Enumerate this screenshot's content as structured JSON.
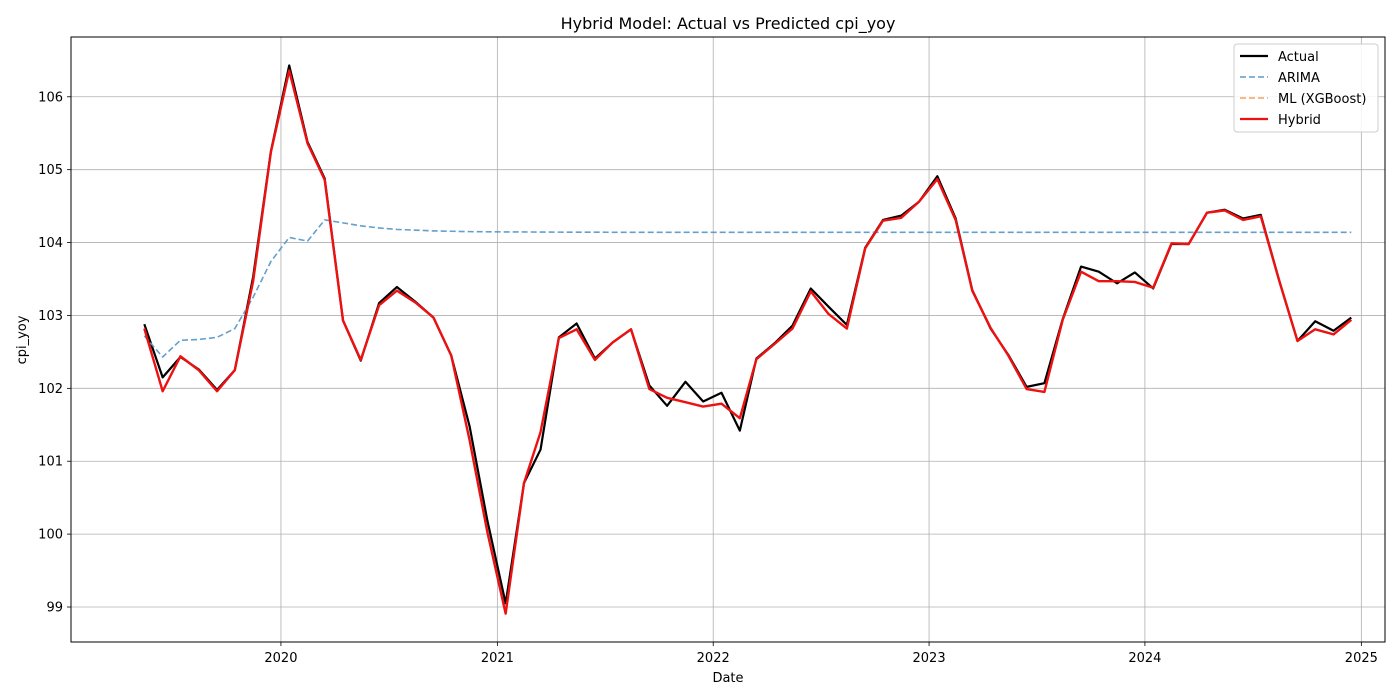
{
  "chart_data": {
    "type": "line",
    "title": "Hybrid Model: Actual vs Predicted cpi_yoy",
    "xlabel": "Date",
    "ylabel": "cpi_yoy",
    "xlim": [
      "2019-01-11",
      "2025-02-10"
    ],
    "ylim": [
      98.52,
      106.82
    ],
    "grid": true,
    "legend_position": "top-right",
    "x_ticks": [
      "2020",
      "2021",
      "2022",
      "2023",
      "2024",
      "2025"
    ],
    "y_ticks": [
      99,
      100,
      101,
      102,
      103,
      104,
      105,
      106
    ],
    "x": [
      "2019-05",
      "2019-06",
      "2019-07",
      "2019-08",
      "2019-09",
      "2019-10",
      "2019-11",
      "2019-12",
      "2020-01",
      "2020-02",
      "2020-03",
      "2020-04",
      "2020-05",
      "2020-06",
      "2020-07",
      "2020-08",
      "2020-09",
      "2020-10",
      "2020-11",
      "2020-12",
      "2021-01",
      "2021-02",
      "2021-03",
      "2021-04",
      "2021-05",
      "2021-06",
      "2021-07",
      "2021-08",
      "2021-09",
      "2021-10",
      "2021-11",
      "2021-12",
      "2022-01",
      "2022-02",
      "2022-03",
      "2022-04",
      "2022-05",
      "2022-06",
      "2022-07",
      "2022-08",
      "2022-09",
      "2022-10",
      "2022-11",
      "2022-12",
      "2023-01",
      "2023-02",
      "2023-03",
      "2023-04",
      "2023-05",
      "2023-06",
      "2023-07",
      "2023-08",
      "2023-09",
      "2023-10",
      "2023-11",
      "2023-12",
      "2024-01",
      "2024-02",
      "2024-03",
      "2024-04",
      "2024-05",
      "2024-06",
      "2024-07",
      "2024-08",
      "2024-09",
      "2024-10",
      "2024-11",
      "2024-12"
    ],
    "series": [
      {
        "name": "Actual",
        "color": "#000000",
        "style": "solid",
        "values": [
          102.88,
          102.15,
          102.43,
          102.26,
          101.98,
          102.25,
          103.53,
          105.25,
          106.43,
          105.38,
          104.88,
          102.93,
          102.38,
          103.17,
          103.39,
          103.19,
          102.97,
          102.45,
          101.48,
          100.19,
          99.05,
          100.7,
          101.16,
          102.7,
          102.89,
          102.41,
          102.63,
          102.81,
          102.04,
          101.76,
          102.09,
          101.82,
          101.94,
          101.42,
          102.41,
          102.62,
          102.86,
          103.37,
          103.12,
          102.87,
          103.93,
          104.31,
          104.37,
          104.56,
          104.91,
          104.33,
          103.35,
          102.82,
          102.46,
          102.02,
          102.07,
          102.95,
          103.67,
          103.6,
          103.44,
          103.59,
          103.37,
          103.98,
          103.98,
          104.41,
          104.45,
          104.33,
          104.38,
          103.48,
          102.65,
          102.92,
          102.79,
          102.97
        ]
      },
      {
        "name": "ARIMA",
        "color": "#5b9bc9",
        "style": "dashed",
        "values": [
          102.72,
          102.43,
          102.66,
          102.67,
          102.7,
          102.82,
          103.25,
          103.74,
          104.07,
          104.02,
          104.31,
          104.27,
          104.23,
          104.2,
          104.18,
          104.17,
          104.16,
          104.155,
          104.15,
          104.148,
          104.146,
          104.145,
          104.144,
          104.143,
          104.142,
          104.142,
          104.141,
          104.141,
          104.141,
          104.14,
          104.14,
          104.14,
          104.14,
          104.14,
          104.14,
          104.14,
          104.14,
          104.14,
          104.14,
          104.14,
          104.14,
          104.14,
          104.14,
          104.14,
          104.14,
          104.14,
          104.14,
          104.14,
          104.14,
          104.14,
          104.14,
          104.14,
          104.14,
          104.14,
          104.14,
          104.14,
          104.14,
          104.14,
          104.14,
          104.14,
          104.14,
          104.14,
          104.14,
          104.14,
          104.14,
          104.14,
          104.14,
          104.14
        ]
      },
      {
        "name": "ML (XGBoost)",
        "color": "#f5a25d",
        "style": "dashed",
        "values": [
          102.82,
          101.96,
          102.44,
          102.25,
          101.96,
          102.25,
          103.47,
          105.24,
          106.36,
          105.36,
          104.86,
          102.93,
          102.39,
          103.14,
          103.34,
          103.18,
          102.97,
          102.45,
          101.29,
          100.03,
          98.91,
          100.7,
          101.4,
          102.69,
          102.81,
          102.39,
          102.63,
          102.81,
          101.99,
          101.87,
          101.81,
          101.75,
          101.79,
          101.59,
          102.4,
          102.61,
          102.82,
          103.33,
          103.02,
          102.82,
          103.92,
          104.3,
          104.34,
          104.56,
          104.87,
          104.31,
          103.34,
          102.83,
          102.45,
          101.99,
          101.95,
          102.94,
          103.6,
          103.47,
          103.47,
          103.46,
          103.38,
          103.99,
          103.98,
          104.41,
          104.44,
          104.31,
          104.36,
          103.48,
          102.65,
          102.81,
          102.74,
          102.94
        ]
      },
      {
        "name": "Hybrid",
        "color": "#ee1111",
        "style": "solid",
        "values": [
          102.82,
          101.96,
          102.44,
          102.25,
          101.96,
          102.25,
          103.47,
          105.24,
          106.36,
          105.36,
          104.86,
          102.93,
          102.39,
          103.14,
          103.34,
          103.18,
          102.97,
          102.45,
          101.29,
          100.03,
          98.91,
          100.7,
          101.4,
          102.69,
          102.81,
          102.39,
          102.63,
          102.81,
          101.99,
          101.87,
          101.81,
          101.75,
          101.79,
          101.59,
          102.4,
          102.61,
          102.82,
          103.33,
          103.02,
          102.82,
          103.92,
          104.3,
          104.34,
          104.56,
          104.87,
          104.31,
          103.34,
          102.83,
          102.45,
          101.99,
          101.95,
          102.94,
          103.6,
          103.47,
          103.47,
          103.46,
          103.38,
          103.99,
          103.98,
          104.41,
          104.44,
          104.31,
          104.36,
          103.48,
          102.65,
          102.81,
          102.74,
          102.94
        ]
      }
    ]
  }
}
